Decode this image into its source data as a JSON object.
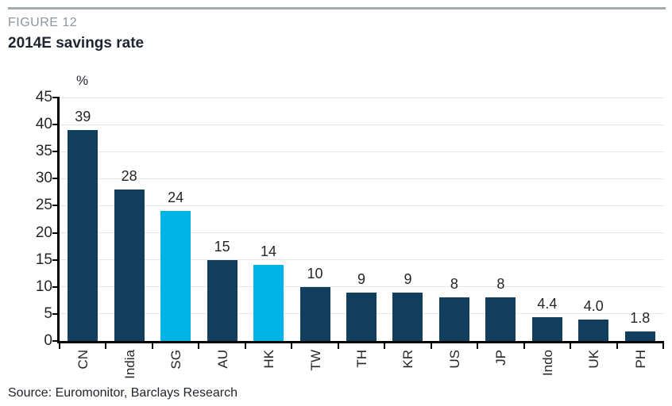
{
  "figure": {
    "label": "FIGURE 12",
    "title": "2014E savings rate",
    "source": "Source: Euromonitor, Barclays Research"
  },
  "chart_data": {
    "type": "bar",
    "title": "2014E savings rate",
    "xlabel": "",
    "ylabel": "%",
    "unit_label": "%",
    "categories": [
      "CN",
      "India",
      "SG",
      "AU",
      "HK",
      "TW",
      "TH",
      "KR",
      "US",
      "JP",
      "Indo",
      "UK",
      "PH"
    ],
    "values": [
      39,
      28,
      24,
      15,
      14,
      10,
      9,
      9,
      8,
      8,
      4.4,
      4.0,
      1.8
    ],
    "value_labels": [
      "39",
      "28",
      "24",
      "15",
      "14",
      "10",
      "9",
      "9",
      "8",
      "8",
      "4.4",
      "4.0",
      "1.8"
    ],
    "highlighted_categories": [
      "SG",
      "HK"
    ],
    "ylim": [
      0,
      45
    ],
    "yticks": [
      0,
      5,
      10,
      15,
      20,
      25,
      30,
      35,
      40,
      45
    ],
    "grid": "horizontal",
    "legend": "none",
    "colors": {
      "bar": "#123e5e",
      "highlight": "#00b4e8",
      "gridline": "#e7e7e5",
      "axis": "#000000",
      "value_text": "#262626",
      "figure_label": "#8c969e",
      "title_text": "#1e2430",
      "top_rule": "#a3abb1"
    }
  }
}
